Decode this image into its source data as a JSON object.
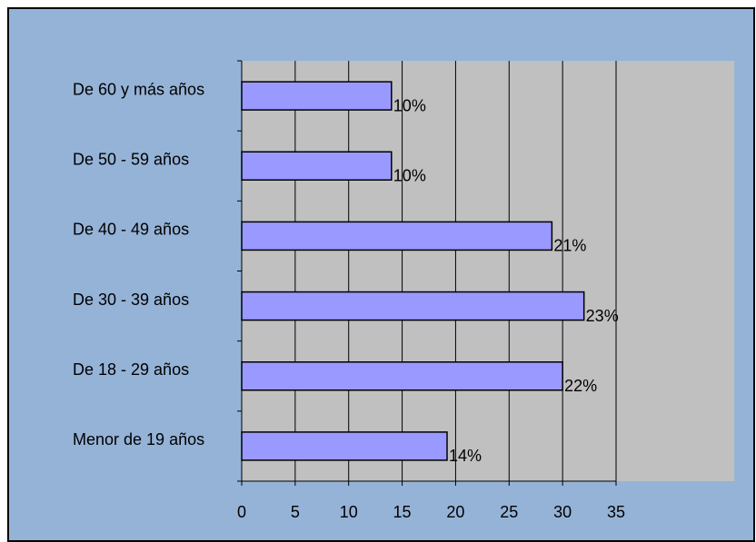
{
  "chart_data": {
    "type": "bar",
    "orientation": "horizontal",
    "categories": [
      "Menor de 19 años",
      "De 18 - 29 años",
      "De 30 - 39 años",
      "De 40 - 49 años",
      "De 50 - 59 años",
      "De 60 y más años"
    ],
    "values": [
      19.2,
      30,
      32,
      29,
      14,
      14
    ],
    "percent_labels": [
      "14%",
      "22%",
      "23%",
      "21%",
      "10%",
      "10%"
    ],
    "color": "#9999ff",
    "xlim": [
      0,
      35
    ],
    "xticks": [
      0,
      5,
      10,
      15,
      20,
      25,
      30,
      35
    ],
    "grid": true
  }
}
